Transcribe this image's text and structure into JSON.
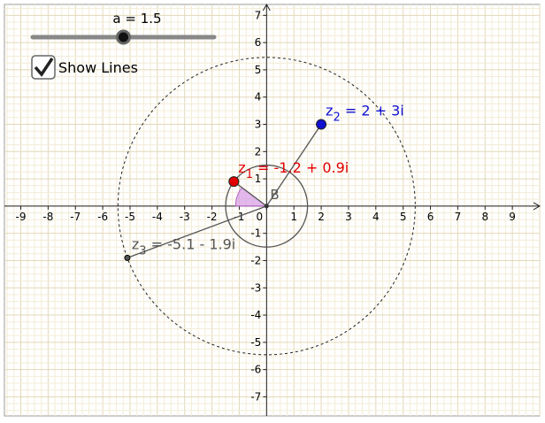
{
  "slider": {
    "label": "a = 1.5",
    "value": 1.5,
    "range": [
      0,
      3
    ]
  },
  "checkbox": {
    "label": "Show Lines",
    "checked": true
  },
  "plane": {
    "xlim": [
      -9.6,
      10
    ],
    "ylim": [
      -7.7,
      7.4
    ],
    "xticks": [
      -9,
      -8,
      -7,
      -6,
      -5,
      -4,
      -3,
      -2,
      -1,
      0,
      1,
      2,
      3,
      4,
      5,
      6,
      7,
      8,
      9
    ],
    "yticks": [
      -7,
      -6,
      -5,
      -4,
      -3,
      -2,
      -1,
      1,
      2,
      3,
      4,
      5,
      6,
      7
    ],
    "origin_label": "B",
    "points": [
      {
        "name": "z",
        "sub": "1",
        "expr": " = -1.2 + 0.9i",
        "x": -1.2,
        "y": 0.9,
        "color": "#e00000"
      },
      {
        "name": "z",
        "sub": "2",
        "expr": " = 2 + 3i",
        "x": 2,
        "y": 3,
        "color": "#1010d0"
      },
      {
        "name": "z",
        "sub": "3",
        "expr": " = -5.1 - 1.9i",
        "x": -5.1,
        "y": -1.9,
        "color": "#555555"
      }
    ]
  }
}
